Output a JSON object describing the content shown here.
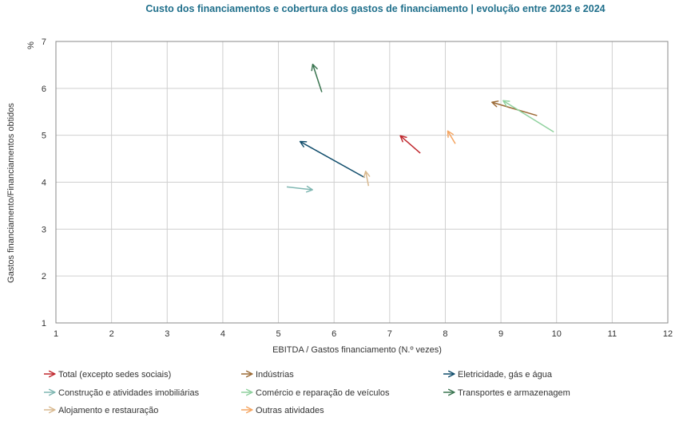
{
  "chart_data": {
    "type": "scatter",
    "title": "Custo dos financiamentos e cobertura dos gastos de financiamento | evolução entre 2023 e 2024",
    "xlabel": "EBITDA / Gastos financiamento (N.º vezes)",
    "ylabel": "Gastos financiamento/Financiamentos obtidos",
    "yunit": "%",
    "xlim": [
      1,
      12
    ],
    "ylim": [
      1,
      7
    ],
    "xticks": [
      "1",
      "2",
      "3",
      "4",
      "5",
      "6",
      "7",
      "8",
      "9",
      "10",
      "11",
      "12"
    ],
    "yticks": [
      "1",
      "2",
      "3",
      "4",
      "5",
      "6",
      "7"
    ],
    "grid": true,
    "legend_position": "bottom",
    "series": [
      {
        "name": "Total (excepto sedes sociais)",
        "color": "#c0282e",
        "x": [
          7.55,
          7.2
        ],
        "y": [
          4.62,
          4.98
        ]
      },
      {
        "name": "Indústrias",
        "color": "#9b6a35",
        "x": [
          9.65,
          8.85
        ],
        "y": [
          5.42,
          5.7
        ]
      },
      {
        "name": "Eletricidade, gás e água",
        "color": "#0f4c6b",
        "x": [
          6.55,
          5.4
        ],
        "y": [
          4.1,
          4.86
        ]
      },
      {
        "name": "Construção e atividades imobiliárias",
        "color": "#7fb7b2",
        "x": [
          5.15,
          5.6
        ],
        "y": [
          3.9,
          3.84
        ]
      },
      {
        "name": "Comércio e reparação de veículos",
        "color": "#8fd19e",
        "x": [
          9.95,
          9.05
        ],
        "y": [
          5.07,
          5.73
        ]
      },
      {
        "name": "Transportes e armazenagem",
        "color": "#3a7550",
        "x": [
          5.78,
          5.62
        ],
        "y": [
          5.92,
          6.5
        ]
      },
      {
        "name": "Alojamento e restauração",
        "color": "#d9b98f",
        "x": [
          6.62,
          6.57
        ],
        "y": [
          3.92,
          4.22
        ]
      },
      {
        "name": "Outras atividades",
        "color": "#f4a460",
        "x": [
          8.18,
          8.05
        ],
        "y": [
          4.82,
          5.08
        ]
      }
    ]
  }
}
